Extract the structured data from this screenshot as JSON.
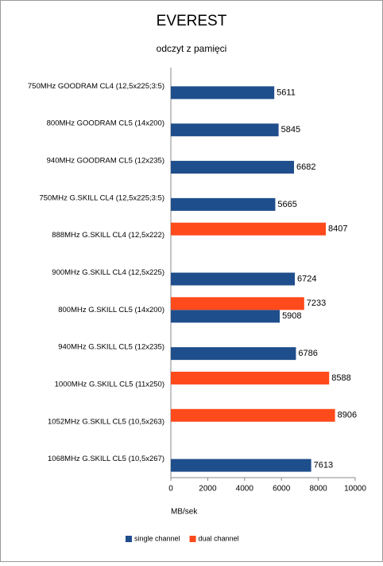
{
  "chart_data": {
    "type": "bar",
    "orientation": "horizontal",
    "title": "EVEREST",
    "subtitle": "odczyt z pamięci",
    "x_label": "MB/sek",
    "categories": [
      "750MHz GOODRAM CL4 (12,5x225;3:5)",
      "800MHz GOODRAM CL5 (14x200)",
      "940MHz GOODRAM CL5 (12x235)",
      "750MHz G.SKILL CL4 (12,5x225;3:5)",
      "888MHz G.SKILL CL4 (12,5x222)",
      "900MHz G.SKILL CL4 (12,5x225)",
      "800MHz G.SKILL CL5 (14x200)",
      "940MHz G.SKILL CL5 (12x235)",
      "1000MHz G.SKILL CL5 (11x250)",
      "1052MHz G.SKILL CL5 (10,5x263)",
      "1068MHz G.SKILL CL5 (10,5x267)"
    ],
    "series": [
      {
        "name": "single channel",
        "color": "#1f4e8c",
        "values": [
          5611,
          5845,
          6682,
          5665,
          null,
          6724,
          5908,
          6786,
          null,
          null,
          7613
        ]
      },
      {
        "name": "dual channel",
        "color": "#ff4a1c",
        "values": [
          null,
          null,
          null,
          null,
          8407,
          null,
          7233,
          null,
          8588,
          8906,
          null
        ]
      }
    ],
    "xlim": [
      0,
      10000
    ],
    "xticks": [
      0,
      2000,
      4000,
      6000,
      8000,
      10000
    ],
    "grid": false,
    "legend": "bottom"
  }
}
